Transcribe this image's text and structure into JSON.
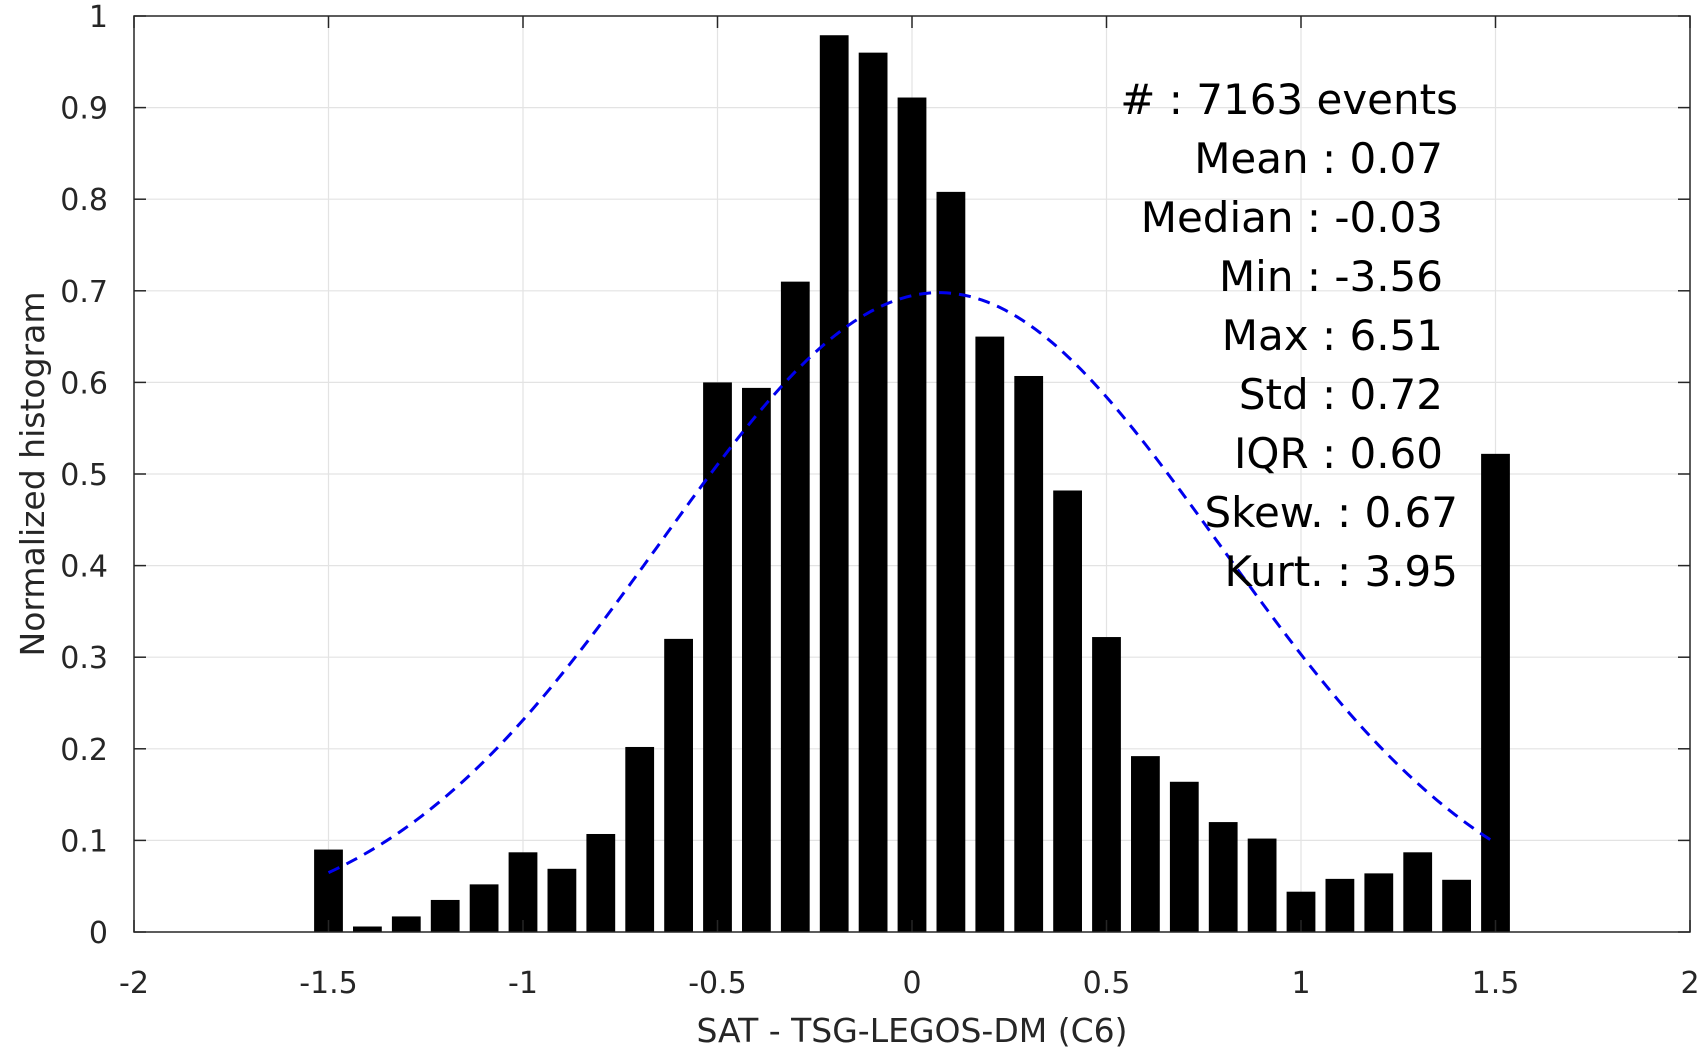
{
  "chart_data": {
    "type": "bar",
    "title": "",
    "xlabel": "SAT - TSG-LEGOS-DM (C6)",
    "ylabel": "Normalized histogram",
    "xlim": [
      -2,
      2
    ],
    "ylim": [
      0,
      1
    ],
    "grid": true,
    "x_ticks": [
      -2,
      -1.5,
      -1,
      -0.5,
      0,
      0.5,
      1,
      1.5,
      2
    ],
    "x_tick_labels": [
      "-2",
      "-1.5",
      "-1",
      "-0.5",
      "0",
      "0.5",
      "1",
      "1.5",
      "2"
    ],
    "y_ticks": [
      0,
      0.1,
      0.2,
      0.3,
      0.4,
      0.5,
      0.6,
      0.7,
      0.8,
      0.9,
      1
    ],
    "y_tick_labels": [
      "0",
      "0.1",
      "0.2",
      "0.3",
      "0.4",
      "0.5",
      "0.6",
      "0.7",
      "0.8",
      "0.9",
      "1"
    ],
    "bin_width": 0.1,
    "bar_color": "#000000",
    "x": [
      -1.5,
      -1.4,
      -1.3,
      -1.2,
      -1.1,
      -1.0,
      -0.9,
      -0.8,
      -0.7,
      -0.6,
      -0.5,
      -0.4,
      -0.3,
      -0.2,
      -0.1,
      0.0,
      0.1,
      0.2,
      0.3,
      0.4,
      0.5,
      0.6,
      0.7,
      0.8,
      0.9,
      1.0,
      1.1,
      1.2,
      1.3,
      1.4,
      1.5
    ],
    "values": [
      0.09,
      0.006,
      0.017,
      0.035,
      0.052,
      0.087,
      0.069,
      0.107,
      0.202,
      0.32,
      0.6,
      0.594,
      0.71,
      0.979,
      0.96,
      0.911,
      0.808,
      0.65,
      0.607,
      0.482,
      0.322,
      0.192,
      0.164,
      0.12,
      0.102,
      0.044,
      0.058,
      0.064,
      0.087,
      0.057,
      0.522
    ],
    "fit_curve": {
      "style": "dashed",
      "color": "#0000ee",
      "mean": 0.07,
      "std": 0.72,
      "peak": 0.698,
      "x_range": [
        -1.5,
        1.5
      ]
    },
    "annotation_lines": [
      "#  : 7163 events",
      "Mean : 0.07",
      "Median : -0.03",
      "Min : -3.56",
      "Max : 6.51",
      "Std : 0.72",
      "IQR : 0.60",
      "Skew. : 0.67",
      "Kurt. : 3.95"
    ]
  }
}
